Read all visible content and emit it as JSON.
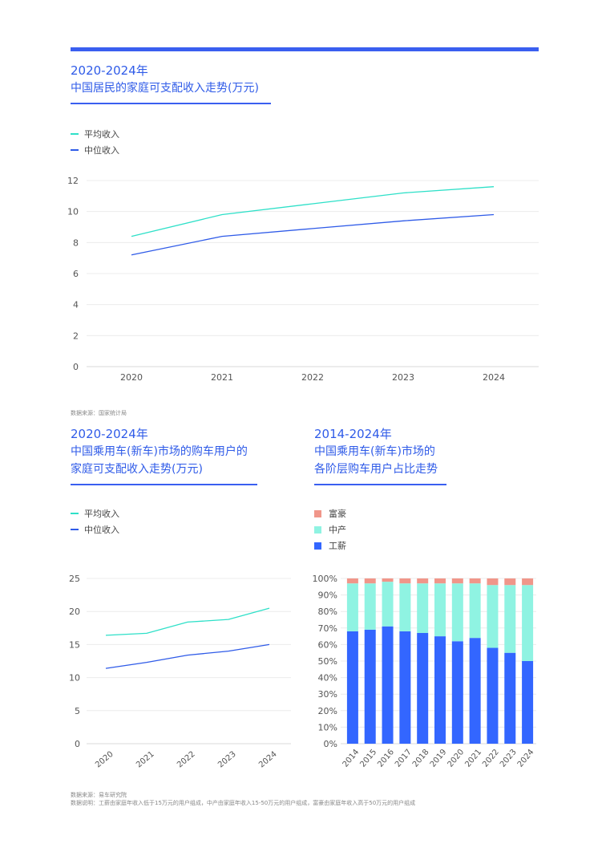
{
  "colors": {
    "accent": "#3a5ff0",
    "teal": "#2ee0c8",
    "blue": "#2f5be8",
    "bar_blue": "#3366ff",
    "bar_mint": "#8ff3e2",
    "bar_salmon": "#f0968a"
  },
  "section1": {
    "title_line1": "2020-2024年",
    "title_line2": "中国居民的家庭可支配收入走势(万元)",
    "legend": [
      "平均收入",
      "中位收入"
    ],
    "source": "数据来源：国家统计局"
  },
  "section2": {
    "title_line1": "2020-2024年",
    "title_line2": "中国乘用车(新车)市场的购车用户的",
    "title_line3": "家庭可支配收入走势(万元)",
    "legend": [
      "平均收入",
      "中位收入"
    ]
  },
  "section3": {
    "title_line1": "2014-2024年",
    "title_line2": "中国乘用车(新车)市场的",
    "title_line3": "各阶层购车用户占比走势",
    "legend": [
      "富豪",
      "中产",
      "工薪"
    ]
  },
  "footer": {
    "source": "数据来源：易车研究院",
    "note": "数据说明：工薪由家庭年收入低于15万元的用户组成，中产由家庭年收入15-50万元的用户组成，富豪由家庭年收入高于50万元的用户组成"
  },
  "chart_data": [
    {
      "type": "line",
      "x": [
        "2020",
        "2021",
        "2022",
        "2023",
        "2024"
      ],
      "series": [
        {
          "name": "平均收入",
          "values": [
            8.4,
            9.8,
            10.5,
            11.2,
            11.6
          ]
        },
        {
          "name": "中位收入",
          "values": [
            7.2,
            8.4,
            8.9,
            9.4,
            9.8
          ]
        }
      ],
      "yticks": [
        "0",
        "2",
        "4",
        "6",
        "8",
        "10",
        "12"
      ],
      "ylim": [
        0,
        12
      ],
      "grid": true,
      "legend_position": "top-left"
    },
    {
      "type": "line",
      "x": [
        "2020",
        "2021",
        "2022",
        "2023",
        "2024"
      ],
      "series": [
        {
          "name": "平均收入",
          "values": [
            16.4,
            16.7,
            18.4,
            18.8,
            20.5
          ]
        },
        {
          "name": "中位收入",
          "values": [
            11.4,
            12.3,
            13.4,
            14.0,
            15.0
          ]
        }
      ],
      "yticks": [
        "0",
        "5",
        "10",
        "15",
        "20",
        "25"
      ],
      "ylim": [
        0,
        25
      ],
      "grid": true,
      "legend_position": "top-left"
    },
    {
      "type": "bar",
      "stacked": true,
      "categories": [
        "2014",
        "2015",
        "2016",
        "2017",
        "2018",
        "2019",
        "2020",
        "2021",
        "2022",
        "2023",
        "2024"
      ],
      "series": [
        {
          "name": "工薪",
          "values": [
            68,
            69,
            71,
            68,
            67,
            65,
            62,
            64,
            58,
            55,
            50
          ]
        },
        {
          "name": "中产",
          "values": [
            29,
            28,
            27,
            29,
            30,
            32,
            35,
            33,
            38,
            41,
            46
          ]
        },
        {
          "name": "富豪",
          "values": [
            3,
            3,
            2,
            3,
            3,
            3,
            3,
            3,
            4,
            4,
            4
          ]
        }
      ],
      "yticks": [
        "0%",
        "10%",
        "20%",
        "30%",
        "40%",
        "50%",
        "60%",
        "70%",
        "80%",
        "90%",
        "100%"
      ],
      "ylim": [
        0,
        100
      ],
      "grid": true,
      "legend_position": "top-left"
    }
  ]
}
